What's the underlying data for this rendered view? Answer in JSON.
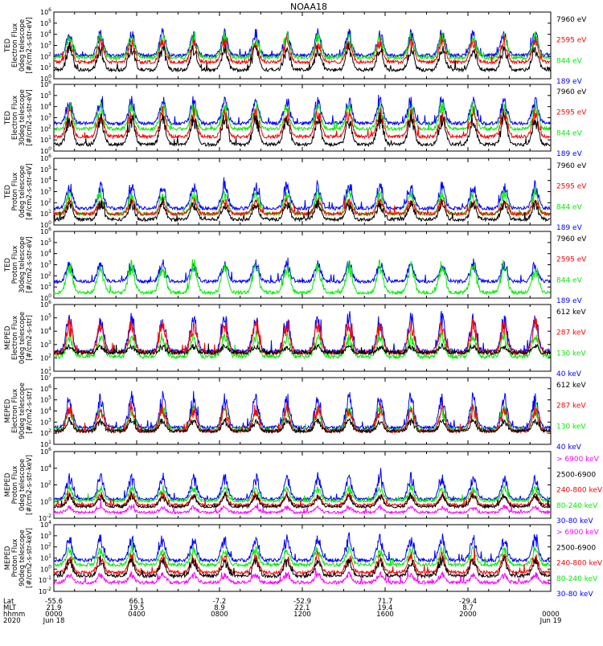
{
  "title": "NOAA18",
  "colors": {
    "black": "#000000",
    "red": "#ff0000",
    "green": "#00ee00",
    "blue": "#0000ff",
    "magenta": "#ff00ff"
  },
  "chart_data": [
    {
      "type": "scatter",
      "ylabel": [
        "TED",
        "Electron Flux",
        "0deg telescope",
        "[#/cm2-s-str-eV]"
      ],
      "yscale": "log",
      "ylim_exp": [
        0,
        6
      ],
      "tick_labels": [
        "10^0",
        "10^1",
        "10^2",
        "10^3",
        "10^4",
        "10^5",
        "10^6"
      ],
      "legend": [
        {
          "label": "7960 eV",
          "color": "#000000"
        },
        {
          "label": "2595 eV",
          "color": "#ff0000"
        },
        {
          "label": "844 eV",
          "color": "#00ee00"
        },
        {
          "label": "189 eV",
          "color": "#0000ff"
        }
      ],
      "series_levels": {
        "blue": [
          2.1,
          4.5
        ],
        "green": [
          1.9,
          4.2
        ],
        "red": [
          1.5,
          3.8
        ],
        "black": [
          0.8,
          3.2
        ]
      }
    },
    {
      "type": "scatter",
      "ylabel": [
        "TED",
        "Electron Flux",
        "30deg telescope",
        "[#/cm2-s-str-eV]"
      ],
      "yscale": "log",
      "ylim_exp": [
        0,
        6
      ],
      "tick_labels": [
        "10^0",
        "10^1",
        "10^2",
        "10^3",
        "10^4",
        "10^5",
        "10^6"
      ],
      "legend": [
        {
          "label": "7960 eV",
          "color": "#000000"
        },
        {
          "label": "2595 eV",
          "color": "#ff0000"
        },
        {
          "label": "844 eV",
          "color": "#00ee00"
        },
        {
          "label": "189 eV",
          "color": "#0000ff"
        }
      ],
      "series_levels": {
        "blue": [
          2.5,
          5.0
        ],
        "green": [
          2.0,
          4.5
        ],
        "red": [
          1.3,
          4.0
        ],
        "black": [
          0.6,
          3.5
        ]
      }
    },
    {
      "type": "scatter",
      "ylabel": [
        "TED",
        "Proton Flux",
        "0deg telescope",
        "[#/cm2-s-str-eV]"
      ],
      "yscale": "log",
      "ylim_exp": [
        0,
        6
      ],
      "tick_labels": [
        "10^0",
        "10^1",
        "10^2",
        "10^3",
        "10^4",
        "10^5",
        "10^6"
      ],
      "legend": [
        {
          "label": "7960 eV",
          "color": "#000000"
        },
        {
          "label": "2595 eV",
          "color": "#ff0000"
        },
        {
          "label": "844 eV",
          "color": "#00ee00"
        },
        {
          "label": "189 eV",
          "color": "#0000ff"
        }
      ],
      "series_levels": {
        "blue": [
          1.5,
          4.0
        ],
        "green": [
          1.0,
          3.3
        ],
        "red": [
          1.0,
          2.5
        ],
        "black": [
          0.5,
          2.3
        ]
      }
    },
    {
      "type": "scatter",
      "ylabel": [
        "TED",
        "Proton Flux",
        "30deg telescope",
        "[#/cm2-s-str-eV]"
      ],
      "yscale": "log",
      "ylim_exp": [
        0,
        6
      ],
      "tick_labels": [
        "10^0",
        "10^1",
        "10^2",
        "10^3",
        "10^4",
        "10^5",
        "10^6"
      ],
      "legend": [
        {
          "label": "7960 eV",
          "color": "#000000"
        },
        {
          "label": "2595 eV",
          "color": "#ff0000"
        },
        {
          "label": "844 eV",
          "color": "#00ee00"
        },
        {
          "label": "189 eV",
          "color": "#0000ff"
        }
      ],
      "series_levels": {
        "blue": [
          1.5,
          3.5
        ],
        "green": [
          0.5,
          3.6
        ],
        "red": [
          0.0,
          0.0
        ],
        "black": [
          0.0,
          0.0
        ]
      }
    },
    {
      "type": "scatter",
      "ylabel": [
        "MEPED",
        "Electron Flux",
        "0deg telescope",
        "[#/cm2-s-str]"
      ],
      "yscale": "log",
      "ylim_exp": [
        1,
        6
      ],
      "tick_labels": [
        "10^1",
        "10^2",
        "10^3",
        "10^4",
        "10^5",
        "10^6"
      ],
      "legend": [
        {
          "label": "612 keV",
          "color": "#000000"
        },
        {
          "label": "287 keV",
          "color": "#ff0000"
        },
        {
          "label": "130 keV",
          "color": "#00ee00"
        },
        {
          "label": "40 keV",
          "color": "#0000ff"
        }
      ],
      "series_levels": {
        "blue": [
          2.5,
          5.5
        ],
        "green": [
          2.1,
          4.0
        ],
        "red": [
          2.4,
          5.0
        ],
        "black": [
          2.4,
          3.0
        ]
      }
    },
    {
      "type": "scatter",
      "ylabel": [
        "MEPED",
        "Electron Flux",
        "90deg telescope",
        "[#/cm2-s-str]"
      ],
      "yscale": "log",
      "ylim_exp": [
        1,
        7
      ],
      "tick_labels": [
        "10^1",
        "10^2",
        "10^3",
        "10^4",
        "10^5",
        "10^6",
        "10^7"
      ],
      "legend": [
        {
          "label": "612 keV",
          "color": "#000000"
        },
        {
          "label": "287 keV",
          "color": "#ff0000"
        },
        {
          "label": "130 keV",
          "color": "#00ee00"
        },
        {
          "label": "40 keV",
          "color": "#0000ff"
        }
      ],
      "series_levels": {
        "blue": [
          2.5,
          5.8
        ],
        "green": [
          2.3,
          4.6
        ],
        "red": [
          2.2,
          4.7
        ],
        "black": [
          2.2,
          3.4
        ]
      }
    },
    {
      "type": "scatter",
      "ylabel": [
        "MEPED",
        "Proton Flux",
        "0deg telescope",
        "[#/cm2-s-str-keV]"
      ],
      "yscale": "log",
      "ylim_exp": [
        -2,
        6
      ],
      "tick_labels": [
        "10^-2",
        "10^0",
        "10^2",
        "10^4",
        "10^6"
      ],
      "legend": [
        {
          "label": "> 6900 keV",
          "color": "#ff00ff"
        },
        {
          "label": "2500-6900",
          "color": "#000000"
        },
        {
          "label": "240-800 keV",
          "color": "#ff0000"
        },
        {
          "label": "80-240 keV",
          "color": "#00ee00"
        },
        {
          "label": "30-80 keV",
          "color": "#0000ff"
        }
      ],
      "series_levels": {
        "blue": [
          0.3,
          3.5
        ],
        "green": [
          0.1,
          2.0
        ],
        "red": [
          -0.4,
          1.2
        ],
        "black": [
          -0.6,
          1.0
        ],
        "magenta": [
          -1.3,
          -0.5
        ]
      }
    },
    {
      "type": "scatter",
      "ylabel": [
        "MEPED",
        "Proton Flux",
        "90deg telescope",
        "[#/cm2-s-str-keV]"
      ],
      "yscale": "log",
      "ylim_exp": [
        -2,
        4
      ],
      "tick_labels": [
        "10^-2",
        "10^-1",
        "10^0",
        "10^1",
        "10^2",
        "10^3",
        "10^4"
      ],
      "legend": [
        {
          "label": "> 6900 keV",
          "color": "#ff00ff"
        },
        {
          "label": "2500-6900",
          "color": "#000000"
        },
        {
          "label": "240-800 keV",
          "color": "#ff0000"
        },
        {
          "label": "80-240 keV",
          "color": "#00ee00"
        },
        {
          "label": "30-80 keV",
          "color": "#0000ff"
        }
      ],
      "series_levels": {
        "blue": [
          0.8,
          3.2
        ],
        "green": [
          0.4,
          2.1
        ],
        "red": [
          -0.3,
          1.5
        ],
        "black": [
          -0.6,
          1.1
        ],
        "magenta": [
          -1.2,
          -0.3
        ]
      }
    }
  ],
  "x_axis": {
    "row_labels": [
      "Lat",
      "MLT",
      "hhmm",
      "2020"
    ],
    "ticks": [
      {
        "lat": "-55.6",
        "mlt": "21.9",
        "hhmm": "0000",
        "date": "Jun 18"
      },
      {
        "lat": "66.1",
        "mlt": "19.5",
        "hhmm": "0400",
        "date": ""
      },
      {
        "lat": "-7.2",
        "mlt": "8.9",
        "hhmm": "0800",
        "date": ""
      },
      {
        "lat": "-52.9",
        "mlt": "22.1",
        "hhmm": "1200",
        "date": ""
      },
      {
        "lat": "71.7",
        "mlt": "19.4",
        "hhmm": "1600",
        "date": ""
      },
      {
        "lat": "-29.4",
        "mlt": "8.7",
        "hhmm": "2000",
        "date": ""
      },
      {
        "lat": "",
        "mlt": "",
        "hhmm": "0000",
        "date": "Jun 19"
      }
    ],
    "hours_range": [
      0,
      24
    ]
  }
}
